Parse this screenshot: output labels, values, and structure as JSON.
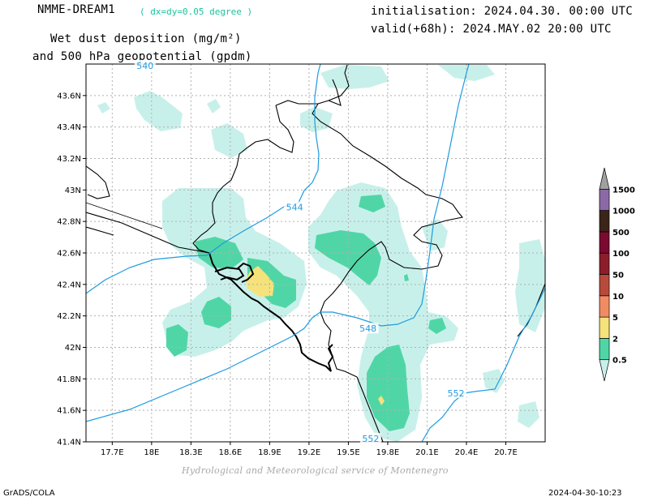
{
  "header": {
    "model": "NMME-DREAM1",
    "resolution": "( dx=dy=0.05 degree )",
    "title_line1": "Wet dust deposition (mg/m²)",
    "title_line2": "and 500 hPa geopotential (gpdm)",
    "init": "initialisation: 2024.04.30. 00:00 UTC",
    "valid": "valid(+68h): 2024.MAY.02 20:00 UTC"
  },
  "footer": {
    "credit": "Hydrological and Meteorological service of Montenegro",
    "software": "GrADS/COLA",
    "timestamp": "2024-04-30-10:23"
  },
  "colors": {
    "grid": "#b0b0b0",
    "contour": "#1e9be0",
    "border": "#000000"
  },
  "chart_data": {
    "type": "heatmap",
    "xlim": [
      17.5,
      21.0
    ],
    "ylim": [
      41.4,
      43.8
    ],
    "x_ticks": [
      17.7,
      18.0,
      18.3,
      18.6,
      18.9,
      19.2,
      19.5,
      19.8,
      20.1,
      20.4,
      20.7
    ],
    "x_tick_labels": [
      "17.7E",
      "18E",
      "18.3E",
      "18.6E",
      "18.9E",
      "19.2E",
      "19.5E",
      "19.8E",
      "20.1E",
      "20.4E",
      "20.7E"
    ],
    "y_ticks": [
      41.4,
      41.6,
      41.8,
      42.0,
      42.2,
      42.4,
      42.6,
      42.8,
      43.0,
      43.2,
      43.4,
      43.6
    ],
    "y_tick_labels": [
      "41.4N",
      "41.6N",
      "41.8N",
      "42N",
      "42.2N",
      "42.4N",
      "42.6N",
      "42.8N",
      "43N",
      "43.2N",
      "43.4N",
      "43.6N"
    ],
    "grid": true,
    "legend": {
      "placement": "right",
      "levels": [
        "0.5",
        "2",
        "5",
        "10",
        "50",
        "100",
        "500",
        "1000",
        "1500"
      ],
      "colors": [
        "#c8f0ea",
        "#50d6a6",
        "#f5e27a",
        "#f08c64",
        "#b84a3c",
        "#8c1e2a",
        "#7a0a30",
        "#3b2418",
        "#8c69a6",
        "#a0a0a0"
      ]
    },
    "geopotential_contours": [
      {
        "label": "540",
        "lon": 17.95,
        "lat": 43.79
      },
      {
        "label": "544",
        "lon": 19.09,
        "lat": 42.89
      },
      {
        "label": "548",
        "lon": 19.65,
        "lat": 42.12
      },
      {
        "label": "552",
        "lon": 20.32,
        "lat": 41.71
      },
      {
        "label": "552",
        "lon": 19.67,
        "lat": 41.42
      }
    ]
  }
}
